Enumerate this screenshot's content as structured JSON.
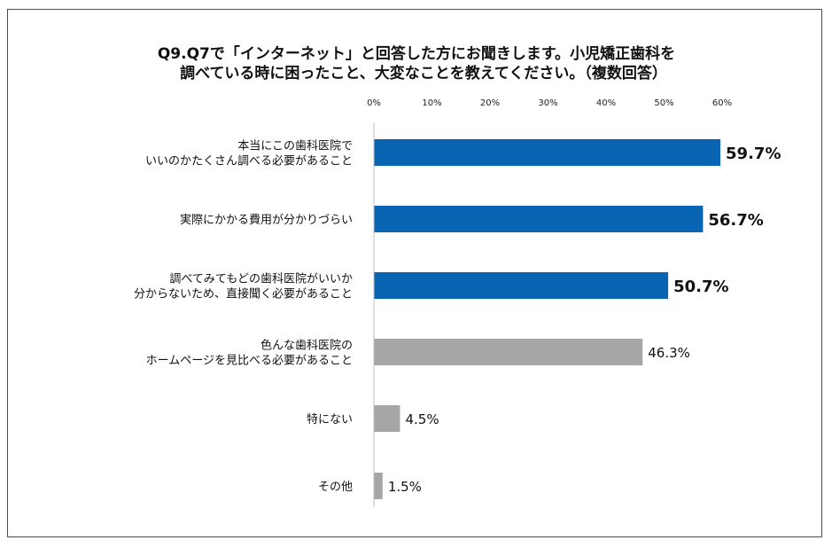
{
  "chart_data": {
    "type": "bar",
    "orientation": "horizontal",
    "title_lines": [
      "Q9.Q7で「インターネット」と回答した方にお聞きします。小児矯正歯科を",
      "調べている時に困ったこと、大変なことを教えてください。（複数回答）"
    ],
    "xlim": [
      0,
      60
    ],
    "x_ticks": [
      "0%",
      "10%",
      "20%",
      "30%",
      "40%",
      "50%",
      "60%"
    ],
    "categories": [
      [
        "本当にこの歯科医院で",
        "いいのかたくさん調べる必要があること"
      ],
      [
        "実際にかかる費用が分かりづらい"
      ],
      [
        "調べてみてもどの歯科医院がいいか",
        "分からないため、直接聞く必要があること"
      ],
      [
        "色んな歯科医院の",
        "ホームページを見比べる必要があること"
      ],
      [
        "特にない"
      ],
      [
        "その他"
      ]
    ],
    "values": [
      59.7,
      56.7,
      50.7,
      46.3,
      4.5,
      1.5
    ],
    "value_labels": [
      "59.7%",
      "56.7%",
      "50.7%",
      "46.3%",
      "4.5%",
      "1.5%"
    ],
    "highlight": [
      true,
      true,
      true,
      false,
      false,
      false
    ],
    "colors": {
      "highlight": "#0a64b4",
      "normal": "#a6a6a6"
    },
    "grid": false,
    "legend": "none"
  }
}
